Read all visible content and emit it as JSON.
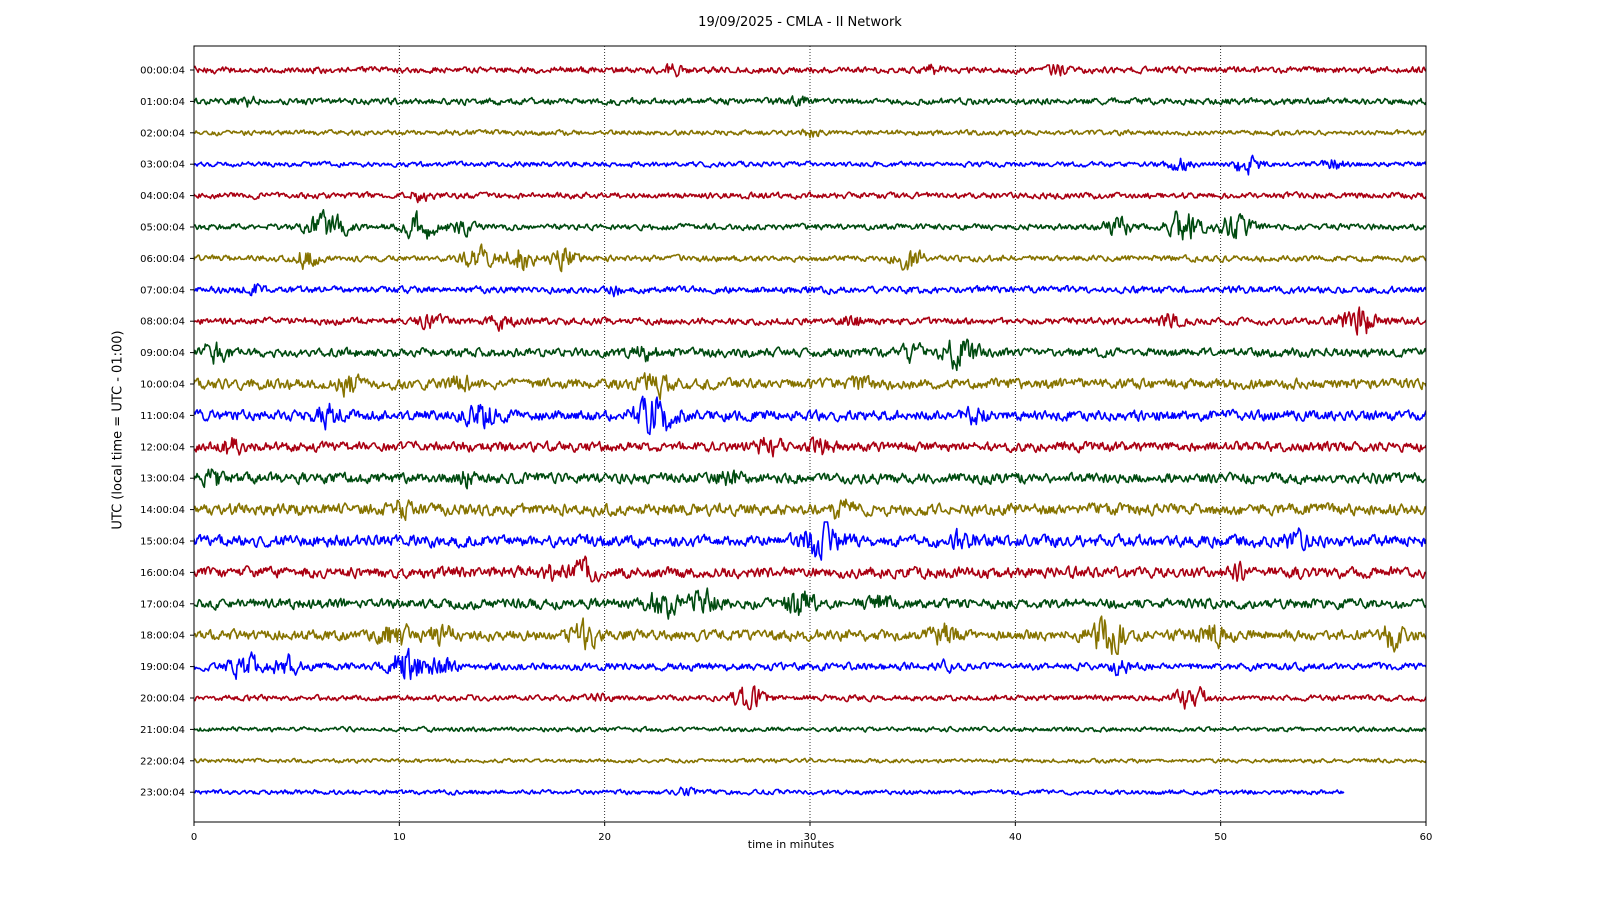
{
  "chart_data": {
    "type": "line",
    "title": "19/09/2025 - CMLA - II Network",
    "xlabel": "time in minutes",
    "ylabel": "UTC (local time = UTC - 01:00)",
    "xlim": [
      0,
      60
    ],
    "x_ticks": [
      "0",
      "10",
      "20",
      "30",
      "40",
      "50",
      "60"
    ],
    "grid": "vertical dotted",
    "colors": [
      "#aa0012",
      "#004b10",
      "#867300",
      "#0000ff"
    ],
    "series": [
      {
        "name": "00:00:04",
        "end": 60,
        "amplitude": 0.28,
        "bursts": [
          [
            23.3,
            0.35
          ],
          [
            36,
            0.3
          ],
          [
            42,
            0.35
          ]
        ]
      },
      {
        "name": "01:00:04",
        "end": 60,
        "amplitude": 0.28,
        "bursts": [
          [
            2.5,
            0.4
          ],
          [
            29.5,
            0.3
          ]
        ]
      },
      {
        "name": "02:00:04",
        "end": 60,
        "amplitude": 0.22,
        "bursts": [
          [
            30,
            0.3
          ]
        ]
      },
      {
        "name": "03:00:04",
        "end": 60,
        "amplitude": 0.22,
        "bursts": [
          [
            48,
            0.55
          ],
          [
            51.2,
            0.8
          ],
          [
            55.5,
            0.4
          ]
        ]
      },
      {
        "name": "04:00:04",
        "end": 60,
        "amplitude": 0.26,
        "bursts": [
          [
            11,
            0.4
          ]
        ]
      },
      {
        "name": "05:00:04",
        "end": 60,
        "amplitude": 0.26,
        "bursts": [
          [
            6.5,
            1.4
          ],
          [
            11,
            1.1
          ],
          [
            13,
            0.6
          ],
          [
            45,
            0.7
          ],
          [
            48.2,
            1.3
          ],
          [
            50.7,
            1.1
          ]
        ]
      },
      {
        "name": "06:00:04",
        "end": 60,
        "amplitude": 0.26,
        "bursts": [
          [
            5.5,
            0.7
          ],
          [
            13.8,
            0.9
          ],
          [
            15.8,
            1.0
          ],
          [
            18,
            0.8
          ],
          [
            34.8,
            0.9
          ]
        ]
      },
      {
        "name": "07:00:04",
        "end": 60,
        "amplitude": 0.3,
        "bursts": [
          [
            3,
            0.35
          ],
          [
            20.5,
            0.3
          ]
        ]
      },
      {
        "name": "08:00:04",
        "end": 60,
        "amplitude": 0.3,
        "bursts": [
          [
            11.5,
            0.5
          ],
          [
            15,
            0.6
          ],
          [
            32,
            0.5
          ],
          [
            47.5,
            0.5
          ],
          [
            56.7,
            1.3
          ]
        ]
      },
      {
        "name": "09:00:04",
        "end": 60,
        "amplitude": 0.38,
        "bursts": [
          [
            1,
            0.7
          ],
          [
            22,
            0.5
          ],
          [
            35,
            0.6
          ],
          [
            37.3,
            1.2
          ]
        ]
      },
      {
        "name": "10:00:04",
        "end": 60,
        "amplitude": 0.45,
        "bursts": [
          [
            7.5,
            0.7
          ],
          [
            13,
            0.5
          ],
          [
            22.5,
            0.9
          ],
          [
            32.5,
            0.5
          ]
        ]
      },
      {
        "name": "11:00:04",
        "end": 60,
        "amplitude": 0.45,
        "bursts": [
          [
            6.5,
            0.8
          ],
          [
            14,
            1.1
          ],
          [
            22.5,
            1.6
          ],
          [
            38,
            0.5
          ]
        ]
      },
      {
        "name": "12:00:04",
        "end": 60,
        "amplitude": 0.42,
        "bursts": [
          [
            1.8,
            0.6
          ],
          [
            28,
            0.7
          ],
          [
            30.5,
            0.6
          ]
        ]
      },
      {
        "name": "13:00:04",
        "end": 60,
        "amplitude": 0.45,
        "bursts": [
          [
            1,
            0.6
          ],
          [
            13,
            0.6
          ],
          [
            26,
            0.5
          ]
        ]
      },
      {
        "name": "14:00:04",
        "end": 60,
        "amplitude": 0.5,
        "bursts": [
          [
            10,
            0.6
          ],
          [
            31.5,
            0.6
          ]
        ]
      },
      {
        "name": "15:00:04",
        "end": 60,
        "amplitude": 0.5,
        "bursts": [
          [
            30.5,
            1.5
          ],
          [
            37.5,
            0.7
          ],
          [
            53.8,
            0.7
          ]
        ]
      },
      {
        "name": "16:00:04",
        "end": 60,
        "amplitude": 0.48,
        "bursts": [
          [
            17.5,
            0.6
          ],
          [
            19,
            0.8
          ],
          [
            51,
            0.5
          ]
        ]
      },
      {
        "name": "17:00:04",
        "end": 60,
        "amplitude": 0.42,
        "bursts": [
          [
            22.8,
            1.0
          ],
          [
            24.8,
            0.9
          ],
          [
            29.5,
            1.1
          ],
          [
            33.5,
            0.6
          ]
        ]
      },
      {
        "name": "18:00:04",
        "end": 60,
        "amplitude": 0.45,
        "bursts": [
          [
            9.8,
            1.0
          ],
          [
            12,
            0.7
          ],
          [
            19,
            0.9
          ],
          [
            36.5,
            0.7
          ],
          [
            44.5,
            1.5
          ],
          [
            49.5,
            0.9
          ],
          [
            58.3,
            0.9
          ]
        ]
      },
      {
        "name": "19:00:04",
        "end": 60,
        "amplitude": 0.32,
        "bursts": [
          [
            2.5,
            1.0
          ],
          [
            4.5,
            0.8
          ],
          [
            10.3,
            1.3
          ],
          [
            12,
            0.8
          ],
          [
            36.5,
            0.4
          ],
          [
            45,
            0.5
          ]
        ]
      },
      {
        "name": "20:00:04",
        "end": 60,
        "amplitude": 0.25,
        "bursts": [
          [
            27,
            1.0
          ],
          [
            48.6,
            1.0
          ],
          [
            19.5,
            0.3
          ]
        ]
      },
      {
        "name": "21:00:04",
        "end": 60,
        "amplitude": 0.2,
        "bursts": []
      },
      {
        "name": "22:00:04",
        "end": 60,
        "amplitude": 0.17,
        "bursts": []
      },
      {
        "name": "23:00:04",
        "end": 56,
        "amplitude": 0.2,
        "bursts": [
          [
            24,
            0.3
          ]
        ]
      }
    ]
  }
}
